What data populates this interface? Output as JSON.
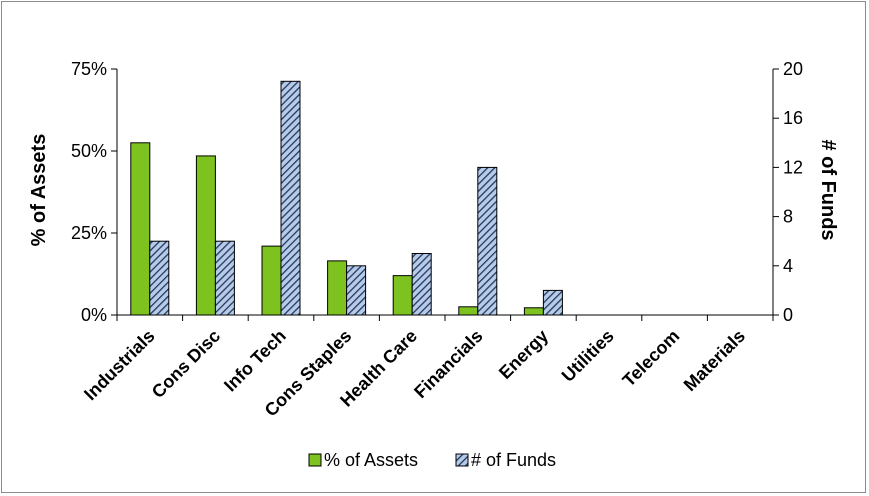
{
  "chart_data": {
    "type": "bar",
    "categories": [
      "Industrials",
      "Cons Disc",
      "Info Tech",
      "Cons Staples",
      "Health Care",
      "Financials",
      "Energy",
      "Utilities",
      "Telecom",
      "Materials"
    ],
    "series": [
      {
        "name": "% of Assets",
        "axis": "left",
        "color": "#7dc21e",
        "values": [
          52.5,
          48.5,
          21,
          16.5,
          12,
          2.5,
          2.2,
          0,
          0,
          0
        ]
      },
      {
        "name": "# of Funds",
        "axis": "right",
        "color": "#1f3864",
        "pattern": "diagonal-hatch",
        "values": [
          6,
          6,
          19,
          4,
          5,
          12,
          2,
          0,
          0,
          0
        ]
      }
    ],
    "ylabel": "% of Assets",
    "y2label": "# of Funds",
    "ylim": [
      0,
      75
    ],
    "y2lim": [
      0,
      20
    ],
    "yticks": [
      "0%",
      "25%",
      "50%",
      "75%"
    ],
    "yticks_values": [
      0,
      25,
      50,
      75
    ],
    "y2ticks": [
      "0",
      "4",
      "8",
      "12",
      "16",
      "20"
    ],
    "y2ticks_values": [
      0,
      4,
      8,
      12,
      16,
      20
    ],
    "grid": false,
    "legend_position": "bottom"
  }
}
